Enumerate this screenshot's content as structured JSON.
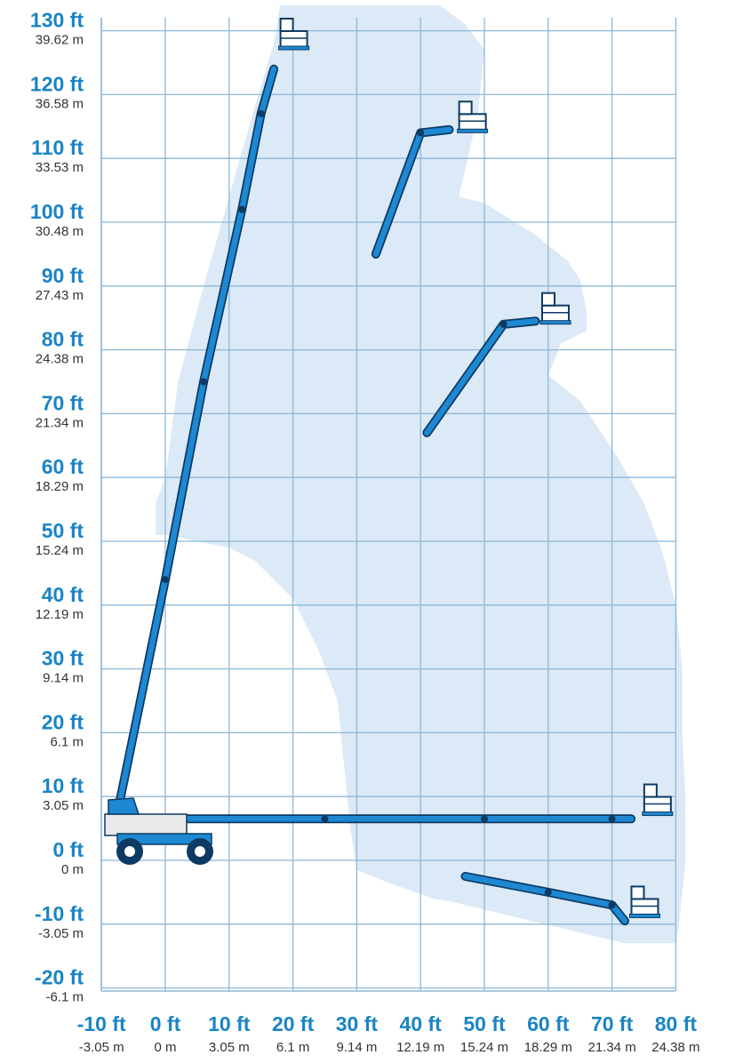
{
  "colors": {
    "envelope": "#dce9f6",
    "grid": "#8cb8d8",
    "label_ft": "#1a84c6",
    "label_m": "#333333",
    "boom": "#1e88d2",
    "boom_dark": "#0d3a63",
    "platform": "#ffffff"
  },
  "chart_data": {
    "type": "diagram",
    "x_axis": {
      "unit_primary": "ft",
      "unit_secondary": "m",
      "ticks": [
        {
          "ft": "-10 ft",
          "m": "-3.05 m"
        },
        {
          "ft": "0 ft",
          "m": "0 m"
        },
        {
          "ft": "10 ft",
          "m": "3.05 m"
        },
        {
          "ft": "20 ft",
          "m": "6.1 m"
        },
        {
          "ft": "30 ft",
          "m": "9.14 m"
        },
        {
          "ft": "40 ft",
          "m": "12.19 m"
        },
        {
          "ft": "50 ft",
          "m": "15.24 m"
        },
        {
          "ft": "60 ft",
          "m": "18.29 m"
        },
        {
          "ft": "70 ft",
          "m": "21.34 m"
        },
        {
          "ft": "80 ft",
          "m": "24.38 m"
        }
      ],
      "range_ft": [
        -10,
        80
      ]
    },
    "y_axis": {
      "ticks": [
        {
          "ft": "130 ft",
          "m": "39.62 m"
        },
        {
          "ft": "120 ft",
          "m": "36.58 m"
        },
        {
          "ft": "110 ft",
          "m": "33.53 m"
        },
        {
          "ft": "100 ft",
          "m": "30.48 m"
        },
        {
          "ft": "90 ft",
          "m": "27.43 m"
        },
        {
          "ft": "80 ft",
          "m": "24.38 m"
        },
        {
          "ft": "70 ft",
          "m": "21.34 m"
        },
        {
          "ft": "60 ft",
          "m": "18.29 m"
        },
        {
          "ft": "50 ft",
          "m": "15.24 m"
        },
        {
          "ft": "40 ft",
          "m": "12.19 m"
        },
        {
          "ft": "30 ft",
          "m": "9.14 m"
        },
        {
          "ft": "20 ft",
          "m": "6.1 m"
        },
        {
          "ft": "10 ft",
          "m": "3.05 m"
        },
        {
          "ft": "0 ft",
          "m": "0 m"
        },
        {
          "ft": "-10 ft",
          "m": "-3.05 m"
        },
        {
          "ft": "-20 ft",
          "m": "-6.1 m"
        }
      ],
      "range_ft": [
        -20,
        130
      ]
    },
    "envelope_outline_ft": [
      [
        18,
        134
      ],
      [
        43,
        134
      ],
      [
        47,
        131
      ],
      [
        50,
        127
      ],
      [
        49,
        117
      ],
      [
        46,
        104
      ],
      [
        50,
        103
      ],
      [
        58,
        98
      ],
      [
        63,
        94
      ],
      [
        65,
        91
      ],
      [
        66,
        86
      ],
      [
        66,
        83
      ],
      [
        62,
        81
      ],
      [
        60,
        76
      ],
      [
        65,
        72
      ],
      [
        71,
        63
      ],
      [
        75,
        56
      ],
      [
        78,
        48
      ],
      [
        80,
        40
      ],
      [
        81,
        30
      ],
      [
        81,
        20
      ],
      [
        81.5,
        10
      ],
      [
        81.5,
        0
      ],
      [
        80.5,
        -10
      ],
      [
        80,
        -13
      ],
      [
        72,
        -13
      ],
      [
        45,
        -6.5
      ],
      [
        42,
        -6
      ],
      [
        35,
        -3.5
      ],
      [
        30,
        -1.5
      ],
      [
        29,
        5
      ],
      [
        28,
        15
      ],
      [
        27,
        25
      ],
      [
        24,
        33
      ],
      [
        20,
        41
      ],
      [
        14,
        47
      ],
      [
        10,
        49
      ],
      [
        5,
        50
      ],
      [
        0,
        51
      ],
      [
        -1.5,
        51
      ],
      [
        -1.5,
        56
      ],
      [
        0,
        60
      ],
      [
        2,
        75
      ],
      [
        6,
        90
      ],
      [
        10,
        104
      ],
      [
        14,
        118
      ],
      [
        17,
        128
      ]
    ],
    "boom_positions_ft": [
      {
        "name": "full-height",
        "segments": [
          [
            -7.5,
            7.5
          ],
          [
            0,
            44
          ],
          [
            6,
            75
          ],
          [
            12,
            102
          ],
          [
            15,
            117
          ],
          [
            17,
            124
          ]
        ],
        "platform_at": [
          20,
          128
        ]
      },
      {
        "name": "high-reach",
        "segments": [
          [
            33,
            95
          ],
          [
            40,
            114
          ],
          [
            44.5,
            114.5
          ]
        ],
        "platform_at": [
          48,
          115
        ]
      },
      {
        "name": "mid-reach",
        "segments": [
          [
            41,
            67
          ],
          [
            53,
            84
          ],
          [
            58,
            84.5
          ]
        ],
        "platform_at": [
          61,
          85
        ]
      },
      {
        "name": "horizontal",
        "segments": [
          [
            -6,
            6.5
          ],
          [
            25,
            6.5
          ],
          [
            50,
            6.5
          ],
          [
            70,
            6.5
          ],
          [
            73,
            6.5
          ]
        ],
        "platform_at": [
          77,
          8
        ]
      },
      {
        "name": "below-grade",
        "segments": [
          [
            47,
            -2.5
          ],
          [
            60,
            -5
          ],
          [
            70,
            -7
          ],
          [
            72,
            -9.5
          ]
        ],
        "platform_at": [
          75,
          -8
        ]
      }
    ]
  }
}
